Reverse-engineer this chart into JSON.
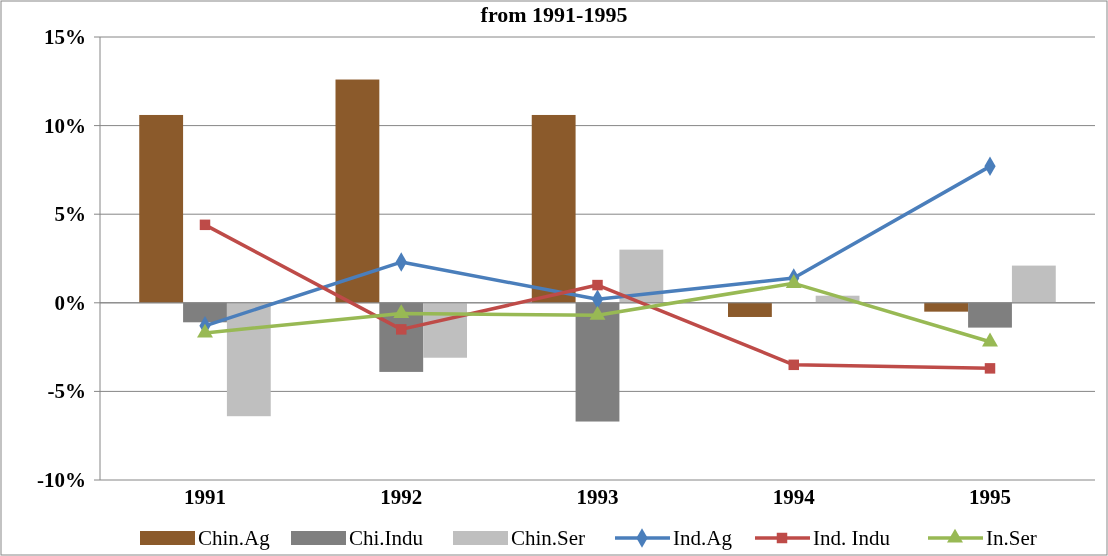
{
  "chart_data": {
    "type": "bar",
    "title": "from 1991-1995",
    "categories": [
      "1991",
      "1992",
      "1993",
      "1994",
      "1995"
    ],
    "series": [
      {
        "name": "Chin.Ag",
        "color": "#8b5a2b",
        "values": [
          10.6,
          12.6,
          10.6,
          -0.8,
          -0.5
        ]
      },
      {
        "name": "Chi.Indu",
        "color": "#7f7f7f",
        "values": [
          -1.1,
          -3.9,
          -6.7,
          0,
          -1.4
        ]
      },
      {
        "name": "Chin.Ser",
        "color": "#bfbfbf",
        "values": [
          -6.4,
          -3.1,
          3.0,
          0.4,
          2.1
        ]
      },
      {
        "name": "Ind.Ag",
        "type": "line",
        "marker": "diamond",
        "color": "#4a7ebb",
        "values": [
          -1.3,
          2.3,
          0.2,
          1.4,
          7.7
        ]
      },
      {
        "name": "Ind. Indu",
        "type": "line",
        "marker": "square",
        "color": "#be4b48",
        "values": [
          4.4,
          -1.5,
          1.0,
          -3.5,
          -3.7
        ]
      },
      {
        "name": "In.Ser",
        "type": "line",
        "marker": "triangle",
        "color": "#98b954",
        "values": [
          -1.7,
          -0.6,
          -0.7,
          1.1,
          -2.2
        ]
      }
    ],
    "ylim": [
      -10,
      15
    ],
    "yticks": [
      {
        "value": -10,
        "label": "-10%"
      },
      {
        "value": -5,
        "label": "-5%"
      },
      {
        "value": 0,
        "label": "0%"
      },
      {
        "value": 5,
        "label": "5%"
      },
      {
        "value": 10,
        "label": "10%"
      },
      {
        "value": 15,
        "label": "15%"
      }
    ],
    "grid": "y",
    "legend": "bottom"
  }
}
